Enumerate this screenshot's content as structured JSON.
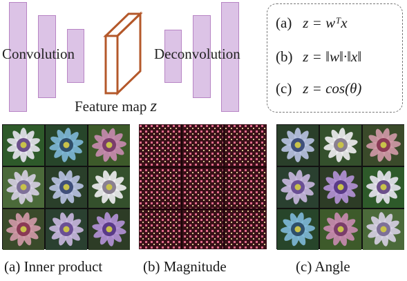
{
  "architecture": {
    "encoder_label": "Convolution",
    "decoder_label": "Deconvolution",
    "feature_map_label": "Feature map",
    "feature_map_symbol": "z",
    "layer_color": "#dcc3e6",
    "feature_map_color": "#b4582a"
  },
  "formulas": [
    {
      "tag": "(a)",
      "expr": "z = wᵀx"
    },
    {
      "tag": "(b)",
      "expr": "z = ‖w‖·‖x‖"
    },
    {
      "tag": "(c)",
      "expr": "z = cos(θ)"
    }
  ],
  "panels": [
    {
      "caption": "(a) Inner product",
      "kind": "flowers"
    },
    {
      "caption": "(b) Magnitude",
      "kind": "texture"
    },
    {
      "caption": "(c) Angle",
      "kind": "flowers"
    }
  ]
}
